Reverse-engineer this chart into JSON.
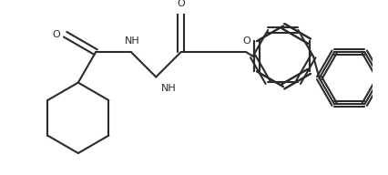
{
  "background_color": "#ffffff",
  "line_color": "#2b2b2b",
  "line_width": 1.5,
  "font_size": 8,
  "figsize": [
    4.26,
    1.92
  ],
  "dpi": 100,
  "xlim": [
    0,
    426
  ],
  "ylim": [
    0,
    192
  ]
}
